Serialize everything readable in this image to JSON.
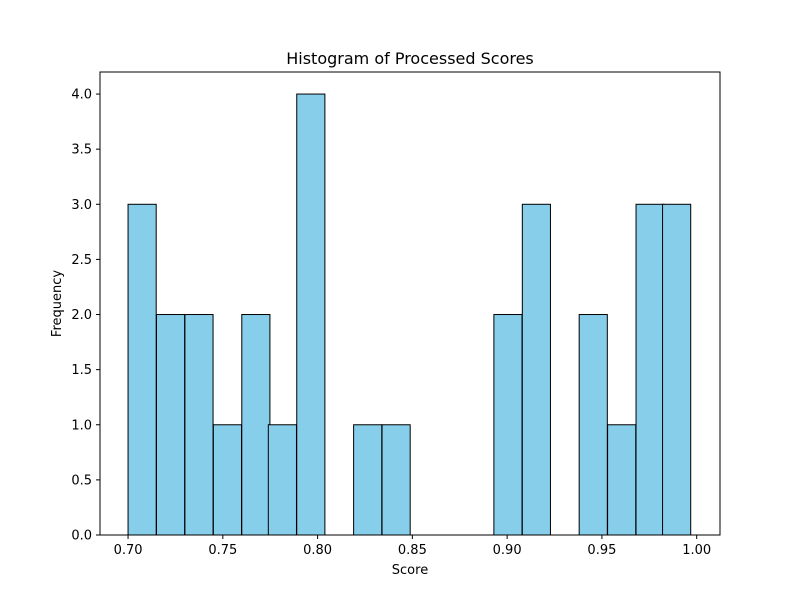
{
  "chart_data": {
    "type": "bar",
    "title": "Histogram of Processed Scores",
    "xlabel": "Score",
    "ylabel": "Frequency",
    "bin_width": 0.01485,
    "bins": [
      {
        "start": 0.7,
        "count": 3
      },
      {
        "start": 0.715,
        "count": 2
      },
      {
        "start": 0.73,
        "count": 2
      },
      {
        "start": 0.745,
        "count": 1
      },
      {
        "start": 0.76,
        "count": 2
      },
      {
        "start": 0.774,
        "count": 1
      },
      {
        "start": 0.789,
        "count": 4
      },
      {
        "start": 0.804,
        "count": 0
      },
      {
        "start": 0.819,
        "count": 1
      },
      {
        "start": 0.834,
        "count": 1
      },
      {
        "start": 0.849,
        "count": 0
      },
      {
        "start": 0.864,
        "count": 0
      },
      {
        "start": 0.878,
        "count": 0
      },
      {
        "start": 0.893,
        "count": 2
      },
      {
        "start": 0.908,
        "count": 3
      },
      {
        "start": 0.923,
        "count": 0
      },
      {
        "start": 0.938,
        "count": 2
      },
      {
        "start": 0.953,
        "count": 1
      },
      {
        "start": 0.968,
        "count": 3
      },
      {
        "start": 0.982,
        "count": 3
      }
    ],
    "xlim": [
      0.6852,
      1.0123
    ],
    "ylim": [
      0,
      4.2
    ],
    "xticks": [
      0.7,
      0.75,
      0.8,
      0.85,
      0.9,
      0.95,
      1.0
    ],
    "xtick_labels": [
      "0.70",
      "0.75",
      "0.80",
      "0.85",
      "0.90",
      "0.95",
      "1.00"
    ],
    "yticks": [
      0.0,
      0.5,
      1.0,
      1.5,
      2.0,
      2.5,
      3.0,
      3.5,
      4.0
    ],
    "ytick_labels": [
      "0.0",
      "0.5",
      "1.0",
      "1.5",
      "2.0",
      "2.5",
      "3.0",
      "3.5",
      "4.0"
    ],
    "bar_color": "#87ceeb",
    "edge_color": "#000000",
    "grid": false,
    "legend": "none"
  }
}
